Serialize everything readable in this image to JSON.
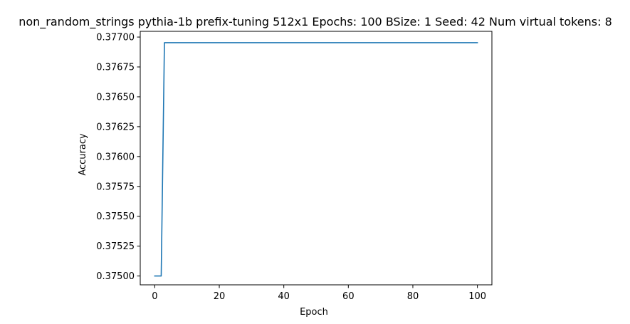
{
  "chart_data": {
    "type": "line",
    "title": "non_random_strings pythia-1b prefix-tuning 512x1 Epochs: 100 BSize: 1 Seed: 42 Num virtual tokens: 8",
    "xlabel": "Epoch",
    "ylabel": "Accuracy",
    "xlim": [
      -4.5,
      104.5
    ],
    "ylim": [
      0.374926,
      0.377048
    ],
    "x_ticks": [
      0,
      20,
      40,
      60,
      80,
      100
    ],
    "x_tick_labels": [
      "0",
      "20",
      "40",
      "60",
      "80",
      "100"
    ],
    "y_ticks": [
      0.375,
      0.37525,
      0.3755,
      0.37575,
      0.376,
      0.37625,
      0.3765,
      0.37675,
      0.377
    ],
    "y_tick_labels": [
      "0.37500",
      "0.37525",
      "0.37550",
      "0.37575",
      "0.37600",
      "0.37625",
      "0.37650",
      "0.37675",
      "0.37700"
    ],
    "grid": false,
    "legend": "none",
    "series": [
      {
        "color": "#1f77b4",
        "points": [
          [
            0,
            0.375
          ],
          [
            1,
            0.375
          ],
          [
            2,
            0.375
          ],
          [
            3,
            0.376953
          ],
          [
            100,
            0.376953
          ]
        ]
      }
    ]
  }
}
